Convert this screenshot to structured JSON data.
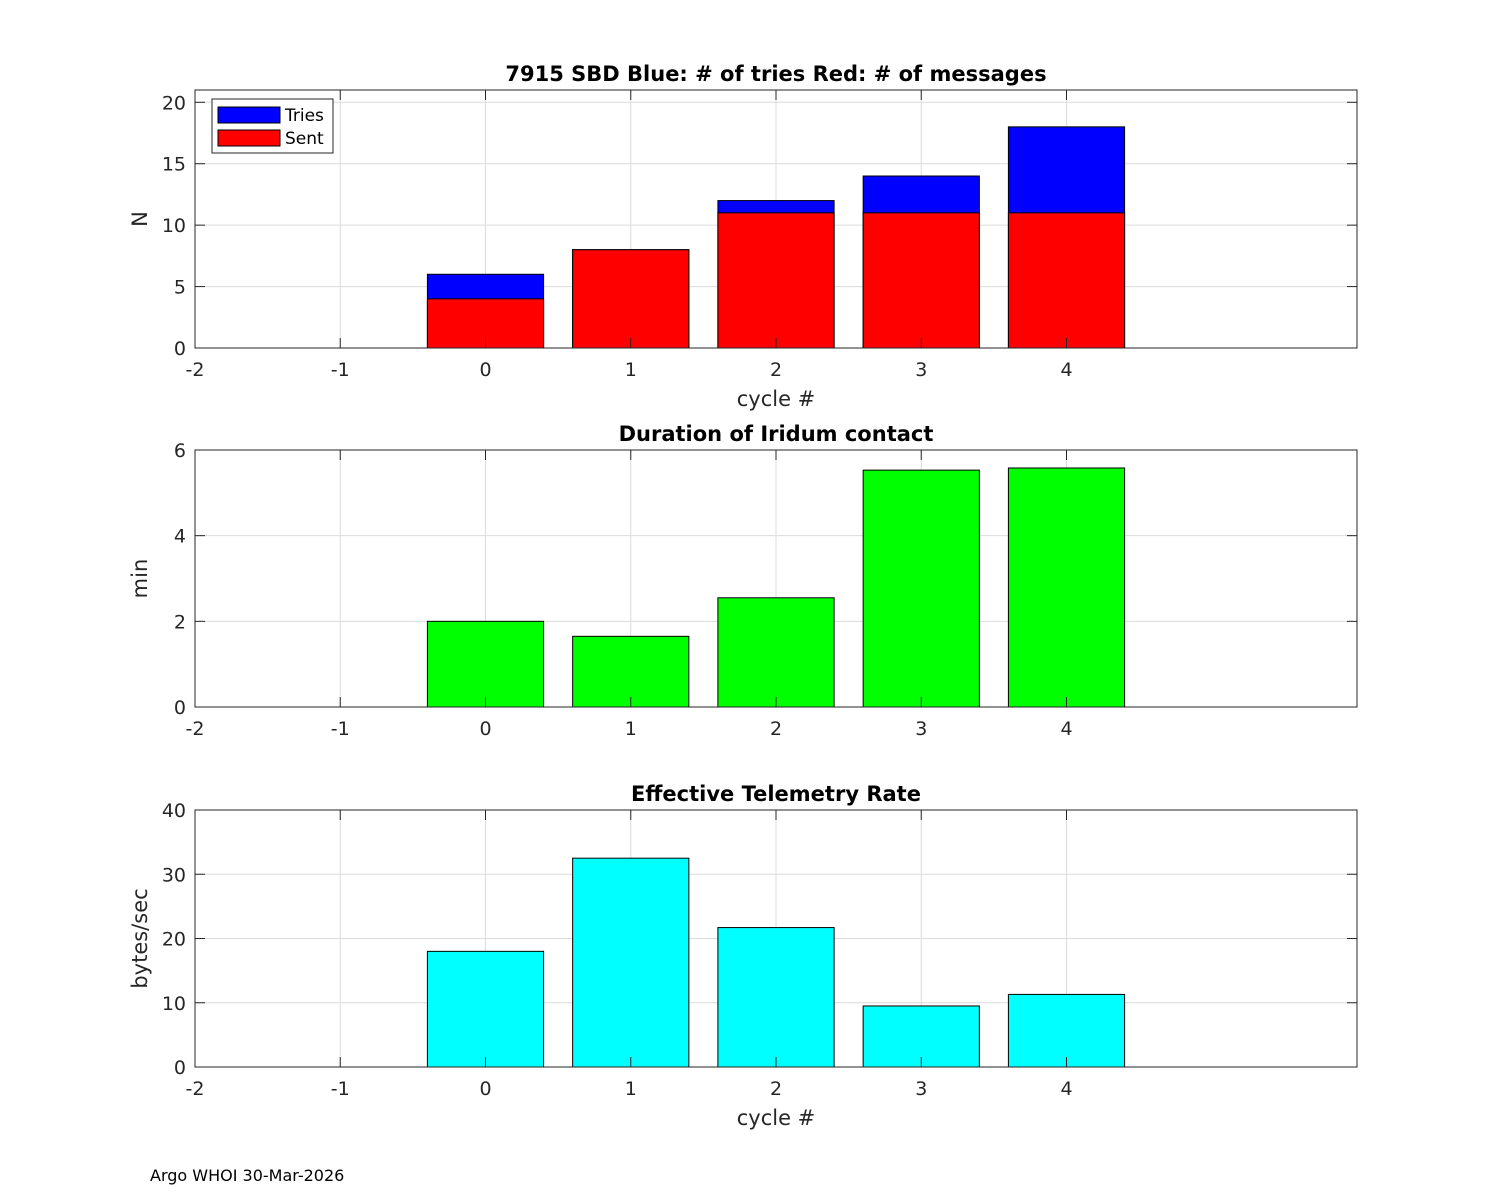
{
  "footer": "Argo WHOI 30-Mar-2026",
  "chart_data": [
    {
      "type": "bar",
      "stacked": false,
      "overlaid": true,
      "title": "7915 SBD  Blue: # of tries   Red: # of messages",
      "xlabel": "cycle #",
      "ylabel": "N",
      "xlim": [
        -2,
        6
      ],
      "ylim": [
        0,
        21
      ],
      "xticks": [
        -2,
        -1,
        0,
        1,
        2,
        3,
        4
      ],
      "yticks": [
        0,
        5,
        10,
        15,
        20
      ],
      "grid": true,
      "legend": "top-left",
      "x": [
        0,
        1,
        2,
        3,
        4
      ],
      "series": [
        {
          "name": "Tries",
          "color": "#0000ff",
          "values": [
            6,
            8,
            12,
            14,
            18
          ]
        },
        {
          "name": "Sent",
          "color": "#ff0000",
          "values": [
            4,
            8,
            11,
            11,
            11
          ]
        }
      ]
    },
    {
      "type": "bar",
      "title": "Duration of Iridum contact",
      "xlabel": "",
      "ylabel": "min",
      "xlim": [
        -2,
        6
      ],
      "ylim": [
        0,
        6
      ],
      "xticks": [
        -2,
        -1,
        0,
        1,
        2,
        3,
        4
      ],
      "yticks": [
        0,
        2,
        4,
        6
      ],
      "grid": true,
      "x": [
        0,
        1,
        2,
        3,
        4
      ],
      "series": [
        {
          "color": "#00ff00",
          "values": [
            2.0,
            1.65,
            2.55,
            5.53,
            5.58
          ]
        }
      ]
    },
    {
      "type": "bar",
      "title": "Effective Telemetry Rate",
      "xlabel": "cycle #",
      "ylabel": "bytes/sec",
      "xlim": [
        -2,
        6
      ],
      "ylim": [
        0,
        40
      ],
      "xticks": [
        -2,
        -1,
        0,
        1,
        2,
        3,
        4
      ],
      "yticks": [
        0,
        10,
        20,
        30,
        40
      ],
      "grid": true,
      "x": [
        0,
        1,
        2,
        3,
        4
      ],
      "series": [
        {
          "color": "#00ffff",
          "values": [
            18,
            32.5,
            21.7,
            9.5,
            11.3
          ]
        }
      ]
    }
  ]
}
